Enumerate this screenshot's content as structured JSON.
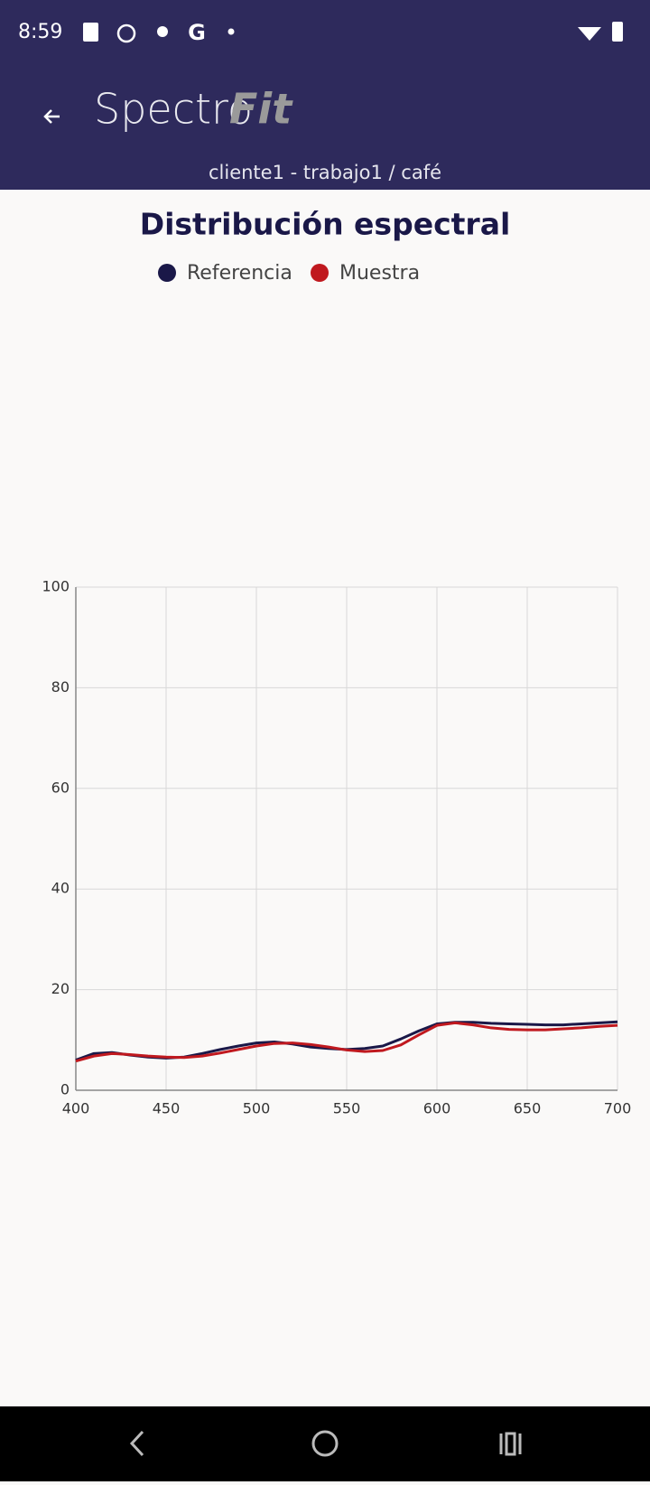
{
  "status_bar": {
    "time": "8:59"
  },
  "header": {
    "logo_light": "Spectro",
    "logo_bold": "Fit",
    "subtitle": "cliente1 - trabajo1 / café"
  },
  "chart_data": {
    "type": "line",
    "title": "Distribución espectral",
    "x": [
      400,
      410,
      420,
      430,
      440,
      450,
      460,
      470,
      480,
      490,
      500,
      510,
      520,
      530,
      540,
      550,
      560,
      570,
      580,
      590,
      600,
      610,
      620,
      630,
      640,
      650,
      660,
      670,
      680,
      690,
      700
    ],
    "series": [
      {
        "name": "Referencia",
        "color": "#1a1848",
        "values": [
          6.0,
          7.3,
          7.5,
          7.0,
          6.6,
          6.4,
          6.6,
          7.3,
          8.1,
          8.8,
          9.4,
          9.6,
          9.2,
          8.6,
          8.3,
          8.1,
          8.3,
          8.8,
          10.2,
          11.8,
          13.2,
          13.5,
          13.5,
          13.3,
          13.2,
          13.1,
          13.0,
          13.0,
          13.2,
          13.4,
          13.6
        ]
      },
      {
        "name": "Muestra",
        "color": "#c0191f",
        "values": [
          5.8,
          6.8,
          7.3,
          7.1,
          6.8,
          6.6,
          6.5,
          6.8,
          7.4,
          8.1,
          8.8,
          9.3,
          9.4,
          9.1,
          8.6,
          8.0,
          7.7,
          7.9,
          9.0,
          11.0,
          12.9,
          13.4,
          13.0,
          12.4,
          12.1,
          12.0,
          12.0,
          12.2,
          12.4,
          12.7,
          12.9
        ]
      }
    ],
    "xlim": [
      400,
      700
    ],
    "xticks": [
      400,
      450,
      500,
      550,
      600,
      650,
      700
    ],
    "ylim": [
      0,
      100
    ],
    "yticks": [
      0,
      20,
      40,
      60,
      80,
      100
    ],
    "grid": true
  }
}
